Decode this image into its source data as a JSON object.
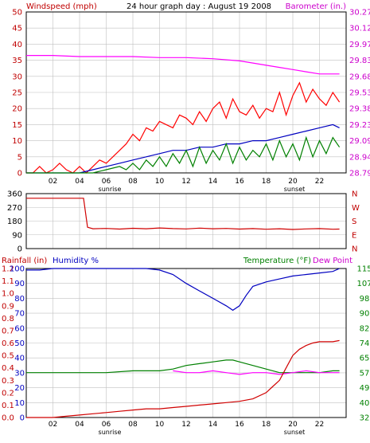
{
  "colors": {
    "background": "#ffffff",
    "plot_border": "#000000",
    "grid": "#c0c0c0",
    "wind_speed": "#ff0000",
    "wind_avg": "#0000c0",
    "wind_gust_low": "#008000",
    "barometer": "#ff00ff",
    "direction": "#d00000",
    "humidity": "#0000c0",
    "rainfall": "#d00000",
    "temperature": "#008000",
    "dew_point": "#ff00ff",
    "label_red": "#c00000",
    "label_blue": "#0000c0",
    "label_green": "#008000",
    "label_magenta": "#cc00cc",
    "label_dark": "#000000"
  },
  "chart_data": [
    {
      "id": "wind_baro",
      "type": "line",
      "title": "24 hour graph day : August 19 2008",
      "left_label": "Windspeed (mph)",
      "right_label": "Barometer (in.)",
      "x_ticks": [
        "02",
        "04",
        "06",
        "08",
        "10",
        "12",
        "14",
        "16",
        "18",
        "20",
        "22"
      ],
      "x_markers": [
        "sunrise",
        "sunset"
      ],
      "xlim": [
        0,
        24
      ],
      "y_left_ticks": [
        "0",
        "5",
        "10",
        "15",
        "20",
        "25",
        "30",
        "35",
        "40",
        "45",
        "50"
      ],
      "ylim_left": [
        0,
        50
      ],
      "y_right_ticks": [
        "28.79",
        "28.94",
        "29.09",
        "29.23",
        "29.38",
        "29.53",
        "29.68",
        "29.83",
        "29.97",
        "30.12",
        "30.27"
      ],
      "ylim_right": [
        28.79,
        30.27
      ],
      "grid": true,
      "series": [
        {
          "key": "speed",
          "color": "#ff0000",
          "axis": "left",
          "x": [
            0,
            0.5,
            1,
            1.5,
            2,
            2.5,
            3,
            3.5,
            4,
            4.5,
            5,
            5.5,
            6,
            6.5,
            7,
            7.5,
            8,
            8.5,
            9,
            9.5,
            10,
            10.5,
            11,
            11.5,
            12,
            12.5,
            13,
            13.5,
            14,
            14.5,
            15,
            15.5,
            16,
            16.5,
            17,
            17.5,
            18,
            18.5,
            19,
            19.5,
            20,
            20.5,
            21,
            21.5,
            22,
            22.5,
            23,
            23.5
          ],
          "values": [
            0,
            0,
            2,
            0,
            1,
            3,
            1,
            0,
            2,
            0,
            2,
            4,
            3,
            5,
            7,
            9,
            12,
            10,
            14,
            13,
            16,
            15,
            14,
            18,
            17,
            15,
            19,
            16,
            20,
            22,
            17,
            23,
            19,
            18,
            21,
            17,
            20,
            19,
            25,
            18,
            24,
            28,
            22,
            26,
            23,
            21,
            25,
            22
          ]
        },
        {
          "key": "avg",
          "color": "#0000c0",
          "axis": "left",
          "x": [
            0,
            1,
            2,
            3,
            4,
            5,
            6,
            7,
            8,
            9,
            10,
            11,
            12,
            13,
            14,
            15,
            16,
            17,
            18,
            19,
            20,
            21,
            22,
            23,
            23.5
          ],
          "values": [
            0,
            0,
            0,
            0,
            0,
            1,
            2,
            3,
            4,
            5,
            6,
            7,
            7,
            8,
            8,
            9,
            9,
            10,
            10,
            11,
            12,
            13,
            14,
            15,
            14
          ]
        },
        {
          "key": "low",
          "color": "#008000",
          "axis": "left",
          "x": [
            0,
            1,
            2,
            3,
            4,
            5,
            6,
            7,
            7.5,
            8,
            8.5,
            9,
            9.5,
            10,
            10.5,
            11,
            11.5,
            12,
            12.5,
            13,
            13.5,
            14,
            14.5,
            15,
            15.5,
            16,
            16.5,
            17,
            17.5,
            18,
            18.5,
            19,
            19.5,
            20,
            20.5,
            21,
            21.5,
            22,
            22.5,
            23,
            23.5
          ],
          "values": [
            0,
            0,
            0,
            0,
            0,
            0,
            1,
            2,
            1,
            3,
            1,
            4,
            2,
            5,
            2,
            6,
            3,
            7,
            2,
            8,
            3,
            7,
            4,
            9,
            3,
            8,
            4,
            7,
            5,
            9,
            4,
            10,
            5,
            9,
            4,
            11,
            5,
            10,
            6,
            11,
            8
          ]
        },
        {
          "key": "baro",
          "color": "#ff00ff",
          "axis": "right",
          "x": [
            0,
            2,
            4,
            6,
            8,
            10,
            12,
            14,
            16,
            17,
            18,
            19,
            20,
            21,
            22,
            23,
            23.5
          ],
          "values": [
            29.87,
            29.87,
            29.86,
            29.86,
            29.86,
            29.85,
            29.85,
            29.84,
            29.82,
            29.8,
            29.78,
            29.76,
            29.74,
            29.72,
            29.7,
            29.7,
            29.7
          ]
        }
      ]
    },
    {
      "id": "direction",
      "type": "line",
      "y_left_ticks": [
        "360",
        "270",
        "180",
        "90",
        "0"
      ],
      "ylim": [
        0,
        360
      ],
      "y_right_ticks": [
        "N",
        "W",
        "S",
        "E",
        "N"
      ],
      "xlim": [
        0,
        24
      ],
      "grid": true,
      "series": [
        {
          "key": "dir",
          "color": "#d00000",
          "x": [
            0,
            1,
            2,
            3,
            4,
            4.3,
            4.6,
            5,
            6,
            7,
            8,
            9,
            10,
            11,
            12,
            13,
            14,
            15,
            16,
            17,
            18,
            19,
            20,
            21,
            22,
            23,
            23.5
          ],
          "values": [
            330,
            330,
            330,
            330,
            330,
            330,
            140,
            130,
            132,
            128,
            133,
            130,
            135,
            131,
            129,
            134,
            130,
            132,
            128,
            131,
            127,
            130,
            125,
            129,
            131,
            127,
            128
          ]
        }
      ]
    },
    {
      "id": "rain_hum_temp",
      "type": "line",
      "labels": {
        "rainfall": "Rainfall (in)",
        "humidity": "Humidity %",
        "temperature": "Temperature (°F)",
        "dew_point": "Dew Point"
      },
      "y_rain_ticks": [
        "0.0",
        "0.1",
        "0.2",
        "0.3",
        "0.4",
        "0.5",
        "0.6",
        "0.7",
        "0.8",
        "0.9",
        "1.0",
        "1.1",
        "1.2"
      ],
      "ylim_rain": [
        0,
        1.2
      ],
      "y_humidity_ticks": [
        "0",
        "10",
        "20",
        "30",
        "40",
        "50",
        "60",
        "70",
        "80",
        "90",
        "100"
      ],
      "ylim_humidity": [
        0,
        100
      ],
      "y_temp_ticks": [
        "32",
        "40",
        "49",
        "57",
        "65",
        "74",
        "82",
        "90",
        "98",
        "107",
        "115"
      ],
      "ylim_temp": [
        32,
        115
      ],
      "x_ticks": [
        "02",
        "04",
        "06",
        "08",
        "10",
        "12",
        "14",
        "16",
        "18",
        "20",
        "22"
      ],
      "x_markers": [
        "sunrise",
        "sunset"
      ],
      "xlim": [
        0,
        24
      ],
      "grid": true,
      "series": [
        {
          "key": "humidity",
          "color": "#0000c0",
          "axis": "humidity",
          "x": [
            0,
            1,
            2,
            3,
            4,
            5,
            6,
            7,
            8,
            9,
            10,
            11,
            12,
            13,
            14,
            15,
            15.5,
            16,
            16.5,
            17,
            18,
            19,
            20,
            21,
            22,
            23,
            23.5
          ],
          "values": [
            99,
            99,
            100,
            100,
            100,
            100,
            100,
            100,
            100,
            100,
            99,
            96,
            90,
            85,
            80,
            75,
            72,
            75,
            82,
            88,
            91,
            93,
            95,
            96,
            97,
            98,
            100
          ]
        },
        {
          "key": "temp",
          "color": "#008000",
          "axis": "temp",
          "x": [
            0,
            2,
            4,
            6,
            8,
            10,
            11,
            12,
            13,
            14,
            15,
            15.5,
            16,
            17,
            18,
            19,
            20,
            21,
            22,
            23,
            23.5
          ],
          "values": [
            57,
            57,
            57,
            57,
            58,
            58,
            59,
            61,
            62,
            63,
            64,
            64,
            63,
            61,
            59,
            57,
            57,
            57,
            57,
            58,
            58
          ]
        },
        {
          "key": "dew",
          "color": "#ff00ff",
          "axis": "temp",
          "x": [
            11,
            12,
            13,
            14,
            15,
            16,
            17,
            18,
            19,
            20,
            21,
            22,
            23,
            23.5
          ],
          "values": [
            58,
            57,
            57,
            58,
            57,
            56,
            57,
            57,
            56,
            57,
            58,
            57,
            57,
            57
          ]
        },
        {
          "key": "rain",
          "color": "#d00000",
          "axis": "rain",
          "x": [
            0,
            1,
            2,
            3,
            4,
            5,
            6,
            7,
            8,
            9,
            10,
            11,
            12,
            13,
            14,
            15,
            16,
            17,
            18,
            18.5,
            19,
            19.5,
            20,
            20.5,
            21,
            21.5,
            22,
            23,
            23.5
          ],
          "values": [
            0,
            0,
            0,
            0.01,
            0.02,
            0.03,
            0.04,
            0.05,
            0.06,
            0.07,
            0.07,
            0.08,
            0.09,
            0.1,
            0.11,
            0.12,
            0.13,
            0.15,
            0.2,
            0.25,
            0.3,
            0.4,
            0.5,
            0.55,
            0.58,
            0.6,
            0.61,
            0.61,
            0.62
          ]
        }
      ]
    }
  ]
}
